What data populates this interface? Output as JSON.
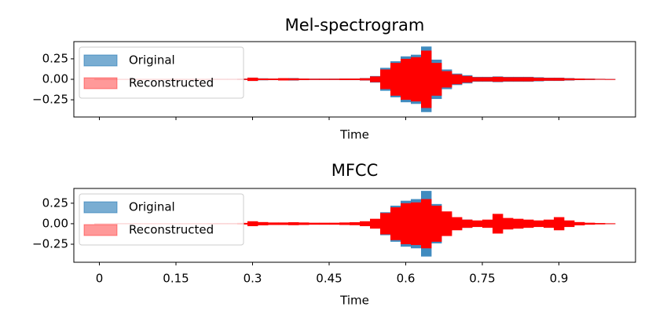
{
  "chart_data": [
    {
      "type": "waveform",
      "title": "Mel-spectrogram",
      "xlabel": "Time",
      "xtick_labels": false,
      "legend": "upper left",
      "xlim": [
        -0.05,
        1.05
      ],
      "ylim": [
        -0.46,
        0.46
      ],
      "xticks": [
        0,
        0.15,
        0.3,
        0.45,
        0.6,
        0.75,
        0.9
      ],
      "yticks": [
        {
          "value": 0.25,
          "label": "0.25"
        },
        {
          "value": 0,
          "label": "0.00"
        },
        {
          "value": -0.25,
          "label": "−0.25"
        }
      ],
      "x": [
        0,
        0.02,
        0.04,
        0.06,
        0.08,
        0.1,
        0.12,
        0.14,
        0.16,
        0.18,
        0.2,
        0.22,
        0.24,
        0.26,
        0.28,
        0.3,
        0.32,
        0.34,
        0.36,
        0.38,
        0.4,
        0.42,
        0.44,
        0.46,
        0.48,
        0.5,
        0.52,
        0.54,
        0.56,
        0.58,
        0.6,
        0.62,
        0.64,
        0.66,
        0.68,
        0.7,
        0.72,
        0.74,
        0.76,
        0.78,
        0.8,
        0.82,
        0.84,
        0.86,
        0.88,
        0.9,
        0.92,
        0.94,
        0.96,
        0.98,
        1.0
      ],
      "series": [
        {
          "name": "Original",
          "color": "#1f77b4",
          "values": [
            0.004,
            0.004,
            0.005,
            0.005,
            0.005,
            0.005,
            0.005,
            0.005,
            0.005,
            0.005,
            0.005,
            0.006,
            0.006,
            0.006,
            0.008,
            0.02,
            0.012,
            0.01,
            0.012,
            0.015,
            0.01,
            0.008,
            0.008,
            0.008,
            0.01,
            0.01,
            0.015,
            0.04,
            0.14,
            0.22,
            0.28,
            0.3,
            0.4,
            0.24,
            0.12,
            0.07,
            0.05,
            0.03,
            0.03,
            0.035,
            0.03,
            0.03,
            0.03,
            0.025,
            0.02,
            0.02,
            0.015,
            0.01,
            0.008,
            0.006,
            0.004
          ]
        },
        {
          "name": "Reconstructed",
          "color": "#ff0000",
          "values": [
            0.003,
            0.003,
            0.004,
            0.004,
            0.004,
            0.004,
            0.004,
            0.004,
            0.004,
            0.004,
            0.004,
            0.005,
            0.005,
            0.005,
            0.007,
            0.02,
            0.01,
            0.009,
            0.014,
            0.012,
            0.009,
            0.007,
            0.007,
            0.007,
            0.009,
            0.009,
            0.013,
            0.035,
            0.12,
            0.2,
            0.25,
            0.27,
            0.35,
            0.2,
            0.1,
            0.06,
            0.04,
            0.025,
            0.025,
            0.03,
            0.025,
            0.025,
            0.025,
            0.02,
            0.017,
            0.017,
            0.012,
            0.009,
            0.007,
            0.005,
            0.003
          ]
        }
      ]
    },
    {
      "type": "waveform",
      "title": "MFCC",
      "xlabel": "Time",
      "xtick_labels": true,
      "legend": "upper left",
      "xlim": [
        -0.05,
        1.05
      ],
      "ylim": [
        -0.47,
        0.43
      ],
      "xticks": [
        0,
        0.15,
        0.3,
        0.45,
        0.6,
        0.75,
        0.9
      ],
      "yticks": [
        {
          "value": 0.25,
          "label": "0.25"
        },
        {
          "value": 0,
          "label": "0.00"
        },
        {
          "value": -0.25,
          "label": "−0.25"
        }
      ],
      "x": [
        0,
        0.02,
        0.04,
        0.06,
        0.08,
        0.1,
        0.12,
        0.14,
        0.16,
        0.18,
        0.2,
        0.22,
        0.24,
        0.26,
        0.28,
        0.3,
        0.32,
        0.34,
        0.36,
        0.38,
        0.4,
        0.42,
        0.44,
        0.46,
        0.48,
        0.5,
        0.52,
        0.54,
        0.56,
        0.58,
        0.6,
        0.62,
        0.64,
        0.66,
        0.68,
        0.7,
        0.72,
        0.74,
        0.76,
        0.78,
        0.8,
        0.82,
        0.84,
        0.86,
        0.88,
        0.9,
        0.92,
        0.94,
        0.96,
        0.98,
        1.0
      ],
      "series": [
        {
          "name": "Original",
          "color": "#1f77b4",
          "values": [
            0.004,
            0.004,
            0.005,
            0.005,
            0.005,
            0.005,
            0.005,
            0.005,
            0.005,
            0.005,
            0.005,
            0.006,
            0.006,
            0.006,
            0.008,
            0.02,
            0.012,
            0.01,
            0.012,
            0.015,
            0.01,
            0.008,
            0.008,
            0.008,
            0.01,
            0.01,
            0.015,
            0.04,
            0.14,
            0.22,
            0.28,
            0.3,
            0.4,
            0.24,
            0.12,
            0.07,
            0.05,
            0.03,
            0.03,
            0.035,
            0.03,
            0.03,
            0.03,
            0.025,
            0.02,
            0.02,
            0.015,
            0.01,
            0.008,
            0.006,
            0.004
          ]
        },
        {
          "name": "Reconstructed",
          "color": "#ff0000",
          "values": [
            0.004,
            0.004,
            0.005,
            0.005,
            0.005,
            0.005,
            0.005,
            0.005,
            0.005,
            0.005,
            0.005,
            0.006,
            0.006,
            0.006,
            0.01,
            0.03,
            0.02,
            0.015,
            0.015,
            0.018,
            0.015,
            0.012,
            0.012,
            0.012,
            0.015,
            0.018,
            0.03,
            0.06,
            0.13,
            0.2,
            0.25,
            0.26,
            0.3,
            0.22,
            0.15,
            0.08,
            0.05,
            0.04,
            0.05,
            0.12,
            0.07,
            0.06,
            0.05,
            0.04,
            0.05,
            0.08,
            0.04,
            0.02,
            0.012,
            0.008,
            0.005
          ]
        }
      ]
    }
  ]
}
